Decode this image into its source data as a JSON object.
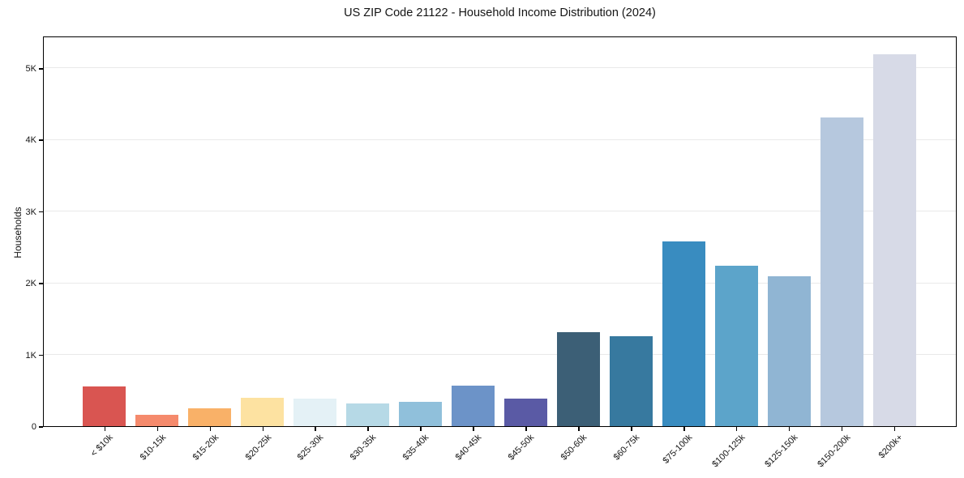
{
  "title": "US ZIP Code 21122 - Household Income Distribution (2024)",
  "chart_data": {
    "type": "bar",
    "title": "US ZIP Code 21122 - Household Income Distribution (2024)",
    "categories": [
      "< $10k",
      "$10-15k",
      "$15-20k",
      "$20-25k",
      "$25-30k",
      "$30-35k",
      "$35-40k",
      "$40-45k",
      "$45-50k",
      "$50-60k",
      "$60-75k",
      "$75-100k",
      "$100-125k",
      "$125-150k",
      "$150-200k",
      "$200k+"
    ],
    "values": [
      550,
      160,
      245,
      400,
      390,
      320,
      345,
      570,
      385,
      1310,
      1255,
      2580,
      2240,
      2090,
      4310,
      5190
    ],
    "bar_colors": [
      "#d95551",
      "#f58a6c",
      "#f9b168",
      "#fde2a1",
      "#e4f1f6",
      "#b6d9e6",
      "#90c0db",
      "#6c93c8",
      "#5a5aa5",
      "#3c5f76",
      "#37799f",
      "#398cc0",
      "#5ca4ca",
      "#90b5d3",
      "#b6c8de",
      "#d7dae7"
    ],
    "xlabel": "",
    "ylabel": "Households",
    "ylim": [
      0,
      5450
    ],
    "yticks": [
      {
        "v": 0,
        "label": "0"
      },
      {
        "v": 1000,
        "label": "1K"
      },
      {
        "v": 2000,
        "label": "2K"
      },
      {
        "v": 3000,
        "label": "3K"
      },
      {
        "v": 4000,
        "label": "4K"
      },
      {
        "v": 5000,
        "label": "5K"
      }
    ],
    "grid": "horizontal-on",
    "gridline_color": "#e9e9e9",
    "legend": "none",
    "frame_color": "#000000",
    "background_color": "#ffffff"
  }
}
